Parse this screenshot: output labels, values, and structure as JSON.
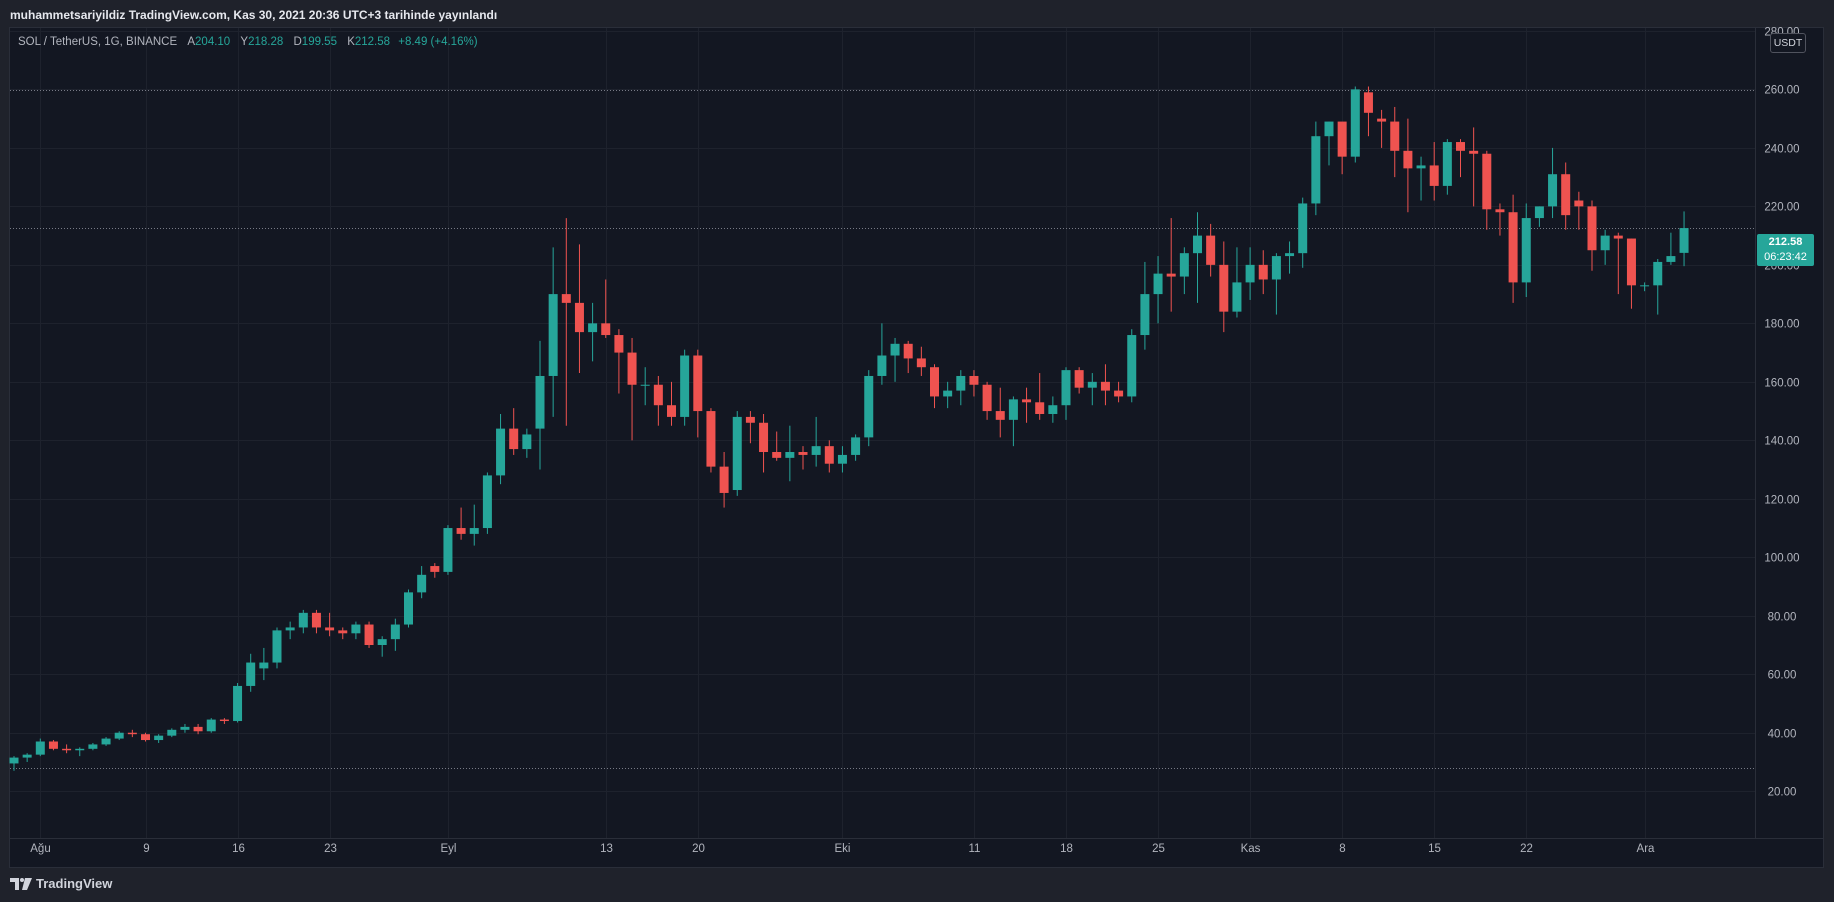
{
  "caption": "muhammetsariyildiz TradingView.com, Kas 30, 2021 20:36 UTC+3 tarihinde yayınlandı",
  "legend": {
    "symbol": "SOL / TetherUS, 1G, BINANCE",
    "open_label": "A",
    "open": "204.10",
    "high_label": "Y",
    "high": "218.28",
    "low_label": "D",
    "low": "199.55",
    "close_label": "K",
    "close": "212.58",
    "change": "+8.49 (+4.16%)"
  },
  "unit": "USDT",
  "last_price": {
    "price": "212.58",
    "countdown": "06:23:42"
  },
  "footer": {
    "brand": "TradingView"
  },
  "colors": {
    "up": "#26a69a",
    "down": "#ef5350",
    "background": "#131722",
    "grid": "#1e222d",
    "axis_text": "#b2b5be"
  },
  "chart_data": {
    "type": "candlestick",
    "y_axis": {
      "ylim": [
        4,
        281
      ],
      "ticks": [
        20,
        40,
        60,
        80,
        100,
        120,
        140,
        160,
        180,
        200,
        220,
        240,
        260,
        280
      ],
      "position": "right"
    },
    "x_axis": {
      "ticks": [
        {
          "label": "Ağu",
          "index": 2
        },
        {
          "label": "9",
          "index": 10
        },
        {
          "label": "16",
          "index": 17
        },
        {
          "label": "23",
          "index": 24
        },
        {
          "label": "Eyl",
          "index": 33
        },
        {
          "label": "13",
          "index": 45
        },
        {
          "label": "20",
          "index": 52
        },
        {
          "label": "Eki",
          "index": 63
        },
        {
          "label": "11",
          "index": 73
        },
        {
          "label": "18",
          "index": 80
        },
        {
          "label": "25",
          "index": 87
        },
        {
          "label": "Kas",
          "index": 94
        },
        {
          "label": "8",
          "index": 101
        },
        {
          "label": "15",
          "index": 108
        },
        {
          "label": "22",
          "index": 115
        },
        {
          "label": "Ara",
          "index": 124
        }
      ]
    },
    "horizontal_lines": [
      259.8,
      212.58,
      27.8
    ],
    "candles": [
      [
        29.5,
        32,
        27,
        31.5
      ],
      [
        31.5,
        33,
        30,
        32.5
      ],
      [
        32.5,
        38,
        32,
        37
      ],
      [
        37,
        37.5,
        34,
        34.5
      ],
      [
        34.5,
        36,
        33,
        34
      ],
      [
        34,
        35,
        32,
        34.5
      ],
      [
        34.5,
        36.5,
        34,
        36
      ],
      [
        36,
        38.5,
        35.5,
        38
      ],
      [
        38,
        40.5,
        37.5,
        40
      ],
      [
        40,
        41,
        38.5,
        39.5
      ],
      [
        39.5,
        40,
        37,
        37.5
      ],
      [
        37.5,
        39.5,
        36.5,
        39
      ],
      [
        39,
        41.5,
        38.5,
        41
      ],
      [
        41,
        43,
        40,
        42
      ],
      [
        42,
        43,
        39.5,
        40.5
      ],
      [
        40.5,
        45,
        40,
        44.5
      ],
      [
        44.5,
        45,
        43,
        44
      ],
      [
        44,
        57,
        43.5,
        56
      ],
      [
        56,
        67,
        54,
        64
      ],
      [
        62,
        69,
        58,
        64
      ],
      [
        64,
        76,
        62,
        75
      ],
      [
        75,
        78,
        72,
        76
      ],
      [
        76,
        82,
        74,
        81
      ],
      [
        81,
        82,
        74,
        76
      ],
      [
        76,
        81,
        73,
        75
      ],
      [
        75,
        76,
        72,
        74
      ],
      [
        74,
        78,
        72,
        77
      ],
      [
        77,
        78,
        69,
        70
      ],
      [
        70,
        73,
        66,
        72
      ],
      [
        72,
        79,
        68,
        77
      ],
      [
        77,
        89,
        76,
        88
      ],
      [
        88,
        97,
        86,
        94
      ],
      [
        97,
        98,
        93,
        95
      ],
      [
        95,
        111,
        94,
        110
      ],
      [
        110,
        117,
        106,
        108
      ],
      [
        108,
        118,
        104,
        110
      ],
      [
        110,
        129,
        108,
        128
      ],
      [
        128,
        149,
        125,
        144
      ],
      [
        144,
        151,
        135,
        137
      ],
      [
        137,
        144,
        134,
        142
      ],
      [
        144,
        174,
        130,
        162
      ],
      [
        162,
        206,
        148,
        190
      ],
      [
        190,
        216,
        145,
        187
      ],
      [
        187,
        207,
        163,
        177
      ],
      [
        177,
        187,
        167,
        180
      ],
      [
        180,
        195,
        175,
        176
      ],
      [
        176,
        178,
        156,
        170
      ],
      [
        170,
        175,
        140,
        159
      ],
      [
        159,
        165,
        152,
        159
      ],
      [
        159,
        162,
        145,
        152
      ],
      [
        152,
        160,
        145,
        148
      ],
      [
        148,
        171,
        145,
        169
      ],
      [
        169,
        171,
        141,
        150
      ],
      [
        150,
        151,
        129,
        131
      ],
      [
        131,
        136,
        117,
        122
      ],
      [
        123,
        150,
        121,
        148
      ],
      [
        148,
        150,
        139,
        146
      ],
      [
        146,
        149,
        129,
        136
      ],
      [
        136,
        143,
        133,
        134
      ],
      [
        134,
        145,
        126,
        136
      ],
      [
        136,
        138,
        130,
        135
      ],
      [
        135,
        148,
        131,
        138
      ],
      [
        138,
        140,
        129,
        132
      ],
      [
        132,
        138,
        129,
        135
      ],
      [
        135,
        142,
        133,
        141
      ],
      [
        141,
        164,
        138,
        162
      ],
      [
        162,
        180,
        159,
        169
      ],
      [
        169,
        175,
        160,
        173
      ],
      [
        173,
        174,
        163,
        168
      ],
      [
        168,
        172,
        162,
        165
      ],
      [
        165,
        166,
        151,
        155
      ],
      [
        155,
        160,
        151,
        157
      ],
      [
        157,
        164,
        152,
        162
      ],
      [
        162,
        164,
        155,
        159
      ],
      [
        159,
        160,
        147,
        150
      ],
      [
        150,
        158,
        141,
        147
      ],
      [
        147,
        155,
        138,
        154
      ],
      [
        154,
        158,
        146,
        153
      ],
      [
        153,
        163,
        147,
        149
      ],
      [
        149,
        155,
        146,
        152
      ],
      [
        152,
        165,
        147,
        164
      ],
      [
        164,
        165,
        156,
        158
      ],
      [
        158,
        163,
        152,
        160
      ],
      [
        160,
        166,
        152,
        157
      ],
      [
        157,
        160,
        153,
        155
      ],
      [
        155,
        178,
        153,
        176
      ],
      [
        176,
        201,
        171,
        190
      ],
      [
        190,
        203,
        180,
        197
      ],
      [
        197,
        216,
        184,
        196
      ],
      [
        196,
        206,
        190,
        204
      ],
      [
        204,
        218,
        187,
        210
      ],
      [
        210,
        214,
        196,
        200
      ],
      [
        200,
        208,
        177,
        184
      ],
      [
        184,
        206,
        182,
        194
      ],
      [
        194,
        206,
        188,
        200
      ],
      [
        200,
        205,
        190,
        195
      ],
      [
        195,
        204,
        183,
        203
      ],
      [
        203,
        208,
        197,
        204
      ],
      [
        204,
        223,
        199,
        221
      ],
      [
        221,
        249,
        217,
        244
      ],
      [
        244,
        249,
        234,
        249
      ],
      [
        249,
        248,
        231,
        237
      ],
      [
        237,
        261,
        235,
        260
      ],
      [
        259,
        261,
        244,
        252
      ],
      [
        250,
        253,
        240,
        249
      ],
      [
        249,
        254,
        230,
        239
      ],
      [
        239,
        250,
        218,
        233
      ],
      [
        233,
        237,
        222,
        234
      ],
      [
        234,
        242,
        222,
        227
      ],
      [
        227,
        243,
        224,
        242
      ],
      [
        242,
        243,
        230,
        239
      ],
      [
        239,
        247,
        220,
        238
      ],
      [
        238,
        239,
        212,
        219
      ],
      [
        219,
        221,
        210,
        218
      ],
      [
        218,
        224,
        187,
        194
      ],
      [
        194,
        221,
        189,
        216
      ],
      [
        216,
        220,
        213,
        220
      ],
      [
        220,
        240,
        216,
        231
      ],
      [
        231,
        235,
        212,
        217
      ],
      [
        222,
        225,
        212,
        220
      ],
      [
        220,
        222,
        198,
        205
      ],
      [
        205,
        212,
        200,
        210
      ],
      [
        210,
        211,
        190,
        209
      ],
      [
        209,
        209,
        185,
        193
      ],
      [
        193,
        194,
        191,
        193
      ],
      [
        193,
        202,
        183,
        201
      ],
      [
        201,
        211,
        200,
        203
      ],
      [
        204.1,
        218.28,
        199.55,
        212.58
      ]
    ]
  }
}
